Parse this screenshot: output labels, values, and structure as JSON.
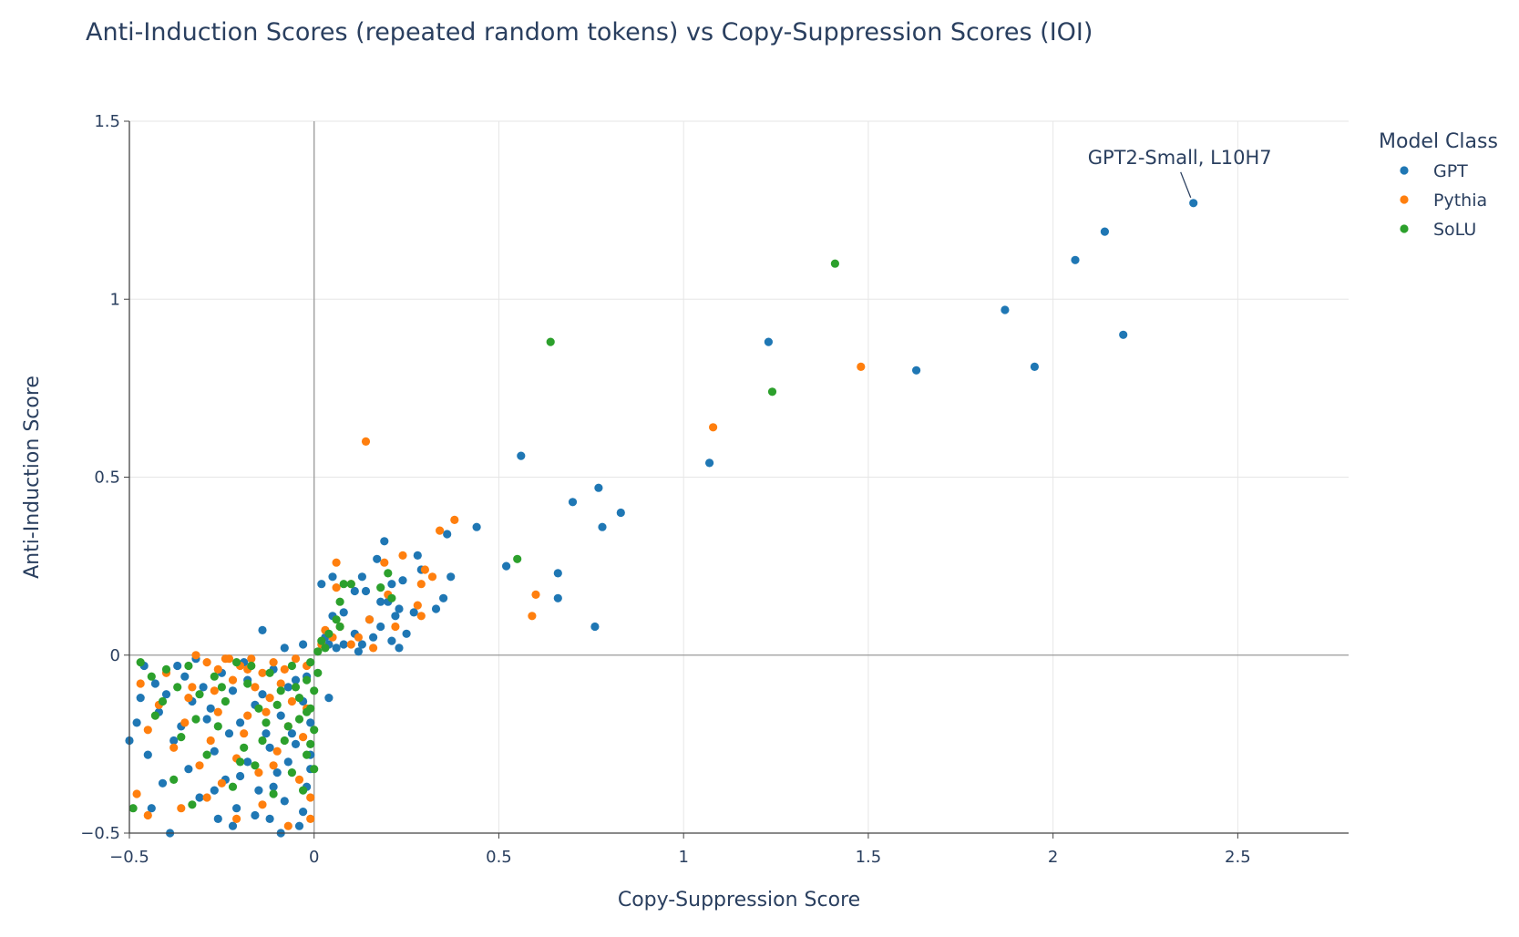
{
  "chart_data": {
    "type": "scatter",
    "title": "Anti-Induction Scores (repeated random tokens) vs Copy-Suppression Scores (IOI)",
    "xlabel": "Copy-Suppression Score",
    "ylabel": "Anti-Induction Score",
    "xlim": [
      -0.5,
      2.8
    ],
    "ylim": [
      -0.5,
      1.5
    ],
    "x_ticks": [
      -0.5,
      0,
      0.5,
      1,
      1.5,
      2,
      2.5
    ],
    "x_tick_labels": [
      "−0.5",
      "0",
      "0.5",
      "1",
      "1.5",
      "2",
      "2.5"
    ],
    "y_ticks": [
      -0.5,
      0,
      0.5,
      1,
      1.5
    ],
    "y_tick_labels": [
      "−0.5",
      "0",
      "0.5",
      "1",
      "1.5"
    ],
    "grid": true,
    "legend": {
      "title": "Model Class",
      "placement": "top-right"
    },
    "annotation": {
      "text": "GPT2-Small, L10H7",
      "x": 2.38,
      "y": 1.27
    },
    "series": [
      {
        "name": "GPT",
        "color": "#1f77b4",
        "points": [
          [
            2.38,
            1.27
          ],
          [
            2.14,
            1.19
          ],
          [
            2.06,
            1.11
          ],
          [
            1.87,
            0.97
          ],
          [
            2.19,
            0.9
          ],
          [
            1.95,
            0.81
          ],
          [
            1.63,
            0.8
          ],
          [
            1.23,
            0.88
          ],
          [
            1.07,
            0.54
          ],
          [
            0.56,
            0.56
          ],
          [
            0.77,
            0.47
          ],
          [
            0.7,
            0.43
          ],
          [
            0.83,
            0.4
          ],
          [
            0.78,
            0.36
          ],
          [
            0.44,
            0.36
          ],
          [
            0.36,
            0.34
          ],
          [
            0.52,
            0.25
          ],
          [
            0.66,
            0.23
          ],
          [
            0.66,
            0.16
          ],
          [
            0.76,
            0.08
          ],
          [
            0.19,
            0.32
          ],
          [
            0.28,
            0.28
          ],
          [
            0.17,
            0.27
          ],
          [
            0.29,
            0.24
          ],
          [
            0.37,
            0.22
          ],
          [
            0.13,
            0.22
          ],
          [
            0.24,
            0.21
          ],
          [
            0.05,
            0.22
          ],
          [
            0.02,
            0.2
          ],
          [
            0.11,
            0.18
          ],
          [
            0.14,
            0.18
          ],
          [
            0.21,
            0.2
          ],
          [
            0.35,
            0.16
          ],
          [
            0.18,
            0.15
          ],
          [
            0.2,
            0.15
          ],
          [
            0.23,
            0.13
          ],
          [
            0.27,
            0.12
          ],
          [
            0.33,
            0.13
          ],
          [
            0.22,
            0.11
          ],
          [
            0.08,
            0.12
          ],
          [
            0.15,
            0.1
          ],
          [
            0.05,
            0.11
          ],
          [
            0.25,
            0.06
          ],
          [
            0.18,
            0.08
          ],
          [
            0.11,
            0.06
          ],
          [
            0.21,
            0.04
          ],
          [
            0.16,
            0.05
          ],
          [
            0.13,
            0.03
          ],
          [
            0.23,
            0.02
          ],
          [
            0.03,
            0.05
          ],
          [
            0.04,
            0.03
          ],
          [
            0.08,
            0.03
          ],
          [
            0.12,
            0.01
          ],
          [
            0.06,
            0.02
          ],
          [
            -0.14,
            0.07
          ],
          [
            -0.08,
            0.02
          ],
          [
            -0.03,
            0.03
          ],
          [
            -0.46,
            -0.03
          ],
          [
            -0.43,
            -0.08
          ],
          [
            -0.4,
            -0.11
          ],
          [
            -0.37,
            -0.03
          ],
          [
            -0.35,
            -0.06
          ],
          [
            -0.33,
            -0.13
          ],
          [
            -0.3,
            -0.09
          ],
          [
            -0.28,
            -0.15
          ],
          [
            -0.25,
            -0.05
          ],
          [
            -0.22,
            -0.1
          ],
          [
            -0.2,
            -0.19
          ],
          [
            -0.18,
            -0.07
          ],
          [
            -0.16,
            -0.14
          ],
          [
            -0.13,
            -0.22
          ],
          [
            -0.11,
            -0.04
          ],
          [
            -0.09,
            -0.17
          ],
          [
            -0.07,
            -0.09
          ],
          [
            -0.05,
            -0.25
          ],
          [
            -0.03,
            -0.13
          ],
          [
            -0.02,
            -0.06
          ],
          [
            -0.48,
            -0.19
          ],
          [
            -0.45,
            -0.28
          ],
          [
            -0.41,
            -0.36
          ],
          [
            -0.38,
            -0.24
          ],
          [
            -0.34,
            -0.32
          ],
          [
            -0.31,
            -0.4
          ],
          [
            -0.27,
            -0.27
          ],
          [
            -0.24,
            -0.35
          ],
          [
            -0.21,
            -0.43
          ],
          [
            -0.18,
            -0.3
          ],
          [
            -0.15,
            -0.38
          ],
          [
            -0.12,
            -0.46
          ],
          [
            -0.1,
            -0.33
          ],
          [
            -0.08,
            -0.41
          ],
          [
            -0.06,
            -0.22
          ],
          [
            -0.04,
            -0.48
          ],
          [
            -0.02,
            -0.37
          ],
          [
            -0.44,
            -0.43
          ],
          [
            -0.39,
            -0.5
          ],
          [
            -0.26,
            -0.46
          ],
          [
            -0.22,
            -0.48
          ],
          [
            -0.16,
            -0.45
          ],
          [
            -0.09,
            -0.5
          ],
          [
            -0.03,
            -0.44
          ],
          [
            -0.01,
            -0.32
          ],
          [
            -0.01,
            -0.28
          ],
          [
            -0.42,
            -0.16
          ],
          [
            -0.36,
            -0.2
          ],
          [
            -0.32,
            -0.01
          ],
          [
            -0.29,
            -0.18
          ],
          [
            -0.23,
            -0.22
          ],
          [
            -0.19,
            -0.02
          ],
          [
            -0.14,
            -0.11
          ],
          [
            -0.12,
            -0.26
          ],
          [
            -0.07,
            -0.3
          ],
          [
            -0.05,
            -0.07
          ],
          [
            -0.01,
            -0.19
          ],
          [
            -0.5,
            -0.24
          ],
          [
            -0.47,
            -0.12
          ],
          [
            -0.27,
            -0.38
          ],
          [
            -0.2,
            -0.34
          ],
          [
            -0.11,
            -0.37
          ],
          [
            0.04,
            -0.12
          ]
        ]
      },
      {
        "name": "Pythia",
        "color": "#ff7f0e",
        "points": [
          [
            1.48,
            0.81
          ],
          [
            1.08,
            0.64
          ],
          [
            0.14,
            0.6
          ],
          [
            0.38,
            0.38
          ],
          [
            0.34,
            0.35
          ],
          [
            0.6,
            0.17
          ],
          [
            0.59,
            0.11
          ],
          [
            0.06,
            0.26
          ],
          [
            0.19,
            0.26
          ],
          [
            0.24,
            0.28
          ],
          [
            0.3,
            0.24
          ],
          [
            0.32,
            0.22
          ],
          [
            0.1,
            0.2
          ],
          [
            0.29,
            0.2
          ],
          [
            0.06,
            0.19
          ],
          [
            0.2,
            0.17
          ],
          [
            0.28,
            0.14
          ],
          [
            0.29,
            0.11
          ],
          [
            0.15,
            0.1
          ],
          [
            0.22,
            0.08
          ],
          [
            0.07,
            0.08
          ],
          [
            0.03,
            0.07
          ],
          [
            0.05,
            0.05
          ],
          [
            0.1,
            0.03
          ],
          [
            0.02,
            0.03
          ],
          [
            0.16,
            0.02
          ],
          [
            0.12,
            0.05
          ],
          [
            -0.32,
            0.0
          ],
          [
            -0.29,
            -0.02
          ],
          [
            -0.26,
            -0.04
          ],
          [
            -0.23,
            -0.01
          ],
          [
            -0.2,
            -0.03
          ],
          [
            -0.17,
            -0.01
          ],
          [
            -0.14,
            -0.05
          ],
          [
            -0.11,
            -0.02
          ],
          [
            -0.08,
            -0.04
          ],
          [
            -0.05,
            -0.01
          ],
          [
            -0.02,
            -0.03
          ],
          [
            -0.47,
            -0.08
          ],
          [
            -0.45,
            -0.21
          ],
          [
            -0.42,
            -0.14
          ],
          [
            -0.38,
            -0.26
          ],
          [
            -0.35,
            -0.19
          ],
          [
            -0.31,
            -0.31
          ],
          [
            -0.28,
            -0.24
          ],
          [
            -0.25,
            -0.36
          ],
          [
            -0.21,
            -0.29
          ],
          [
            -0.18,
            -0.17
          ],
          [
            -0.15,
            -0.33
          ],
          [
            -0.12,
            -0.12
          ],
          [
            -0.1,
            -0.27
          ],
          [
            -0.07,
            -0.2
          ],
          [
            -0.04,
            -0.35
          ],
          [
            -0.02,
            -0.15
          ],
          [
            -0.48,
            -0.39
          ],
          [
            -0.45,
            -0.45
          ],
          [
            -0.36,
            -0.43
          ],
          [
            -0.29,
            -0.4
          ],
          [
            -0.21,
            -0.46
          ],
          [
            -0.14,
            -0.42
          ],
          [
            -0.07,
            -0.48
          ],
          [
            -0.01,
            -0.46
          ],
          [
            -0.01,
            -0.4
          ],
          [
            -0.4,
            -0.05
          ],
          [
            -0.33,
            -0.09
          ],
          [
            -0.27,
            -0.1
          ],
          [
            -0.22,
            -0.07
          ],
          [
            -0.16,
            -0.09
          ],
          [
            -0.13,
            -0.16
          ],
          [
            -0.09,
            -0.08
          ],
          [
            -0.06,
            -0.13
          ],
          [
            -0.03,
            -0.23
          ],
          [
            -0.26,
            -0.16
          ],
          [
            -0.19,
            -0.22
          ],
          [
            -0.11,
            -0.31
          ],
          [
            -0.34,
            -0.12
          ],
          [
            -0.24,
            -0.01
          ],
          [
            -0.18,
            -0.04
          ]
        ]
      },
      {
        "name": "SoLU",
        "color": "#2ca02c",
        "points": [
          [
            1.41,
            1.1
          ],
          [
            0.64,
            0.88
          ],
          [
            1.24,
            0.74
          ],
          [
            0.55,
            0.27
          ],
          [
            0.2,
            0.23
          ],
          [
            0.08,
            0.2
          ],
          [
            0.1,
            0.2
          ],
          [
            0.18,
            0.19
          ],
          [
            0.21,
            0.16
          ],
          [
            0.07,
            0.15
          ],
          [
            0.06,
            0.1
          ],
          [
            0.07,
            0.08
          ],
          [
            0.04,
            0.06
          ],
          [
            0.02,
            0.04
          ],
          [
            0.03,
            0.02
          ],
          [
            0.01,
            0.01
          ],
          [
            -0.47,
            -0.02
          ],
          [
            -0.44,
            -0.06
          ],
          [
            -0.4,
            -0.04
          ],
          [
            -0.37,
            -0.09
          ],
          [
            -0.34,
            -0.03
          ],
          [
            -0.31,
            -0.11
          ],
          [
            -0.27,
            -0.06
          ],
          [
            -0.24,
            -0.13
          ],
          [
            -0.21,
            -0.02
          ],
          [
            -0.18,
            -0.08
          ],
          [
            -0.15,
            -0.15
          ],
          [
            -0.12,
            -0.05
          ],
          [
            -0.09,
            -0.1
          ],
          [
            -0.06,
            -0.03
          ],
          [
            -0.04,
            -0.12
          ],
          [
            -0.02,
            -0.07
          ],
          [
            -0.01,
            -0.02
          ],
          [
            -0.49,
            -0.43
          ],
          [
            -0.43,
            -0.17
          ],
          [
            -0.38,
            -0.35
          ],
          [
            -0.36,
            -0.23
          ],
          [
            -0.33,
            -0.42
          ],
          [
            -0.29,
            -0.28
          ],
          [
            -0.26,
            -0.2
          ],
          [
            -0.22,
            -0.37
          ],
          [
            -0.19,
            -0.26
          ],
          [
            -0.16,
            -0.31
          ],
          [
            -0.13,
            -0.19
          ],
          [
            -0.11,
            -0.39
          ],
          [
            -0.08,
            -0.24
          ],
          [
            -0.06,
            -0.33
          ],
          [
            -0.04,
            -0.18
          ],
          [
            -0.02,
            -0.28
          ],
          [
            -0.01,
            -0.15
          ],
          [
            0.0,
            -0.21
          ],
          [
            0.0,
            -0.1
          ],
          [
            0.01,
            -0.05
          ],
          [
            -0.41,
            -0.13
          ],
          [
            -0.32,
            -0.18
          ],
          [
            -0.25,
            -0.09
          ],
          [
            -0.17,
            -0.03
          ],
          [
            -0.1,
            -0.14
          ],
          [
            -0.05,
            -0.09
          ],
          [
            -0.02,
            -0.16
          ],
          [
            -0.01,
            -0.25
          ],
          [
            0.0,
            -0.32
          ],
          [
            -0.03,
            -0.38
          ],
          [
            -0.2,
            -0.3
          ],
          [
            -0.14,
            -0.24
          ],
          [
            -0.07,
            -0.2
          ]
        ]
      }
    ]
  }
}
